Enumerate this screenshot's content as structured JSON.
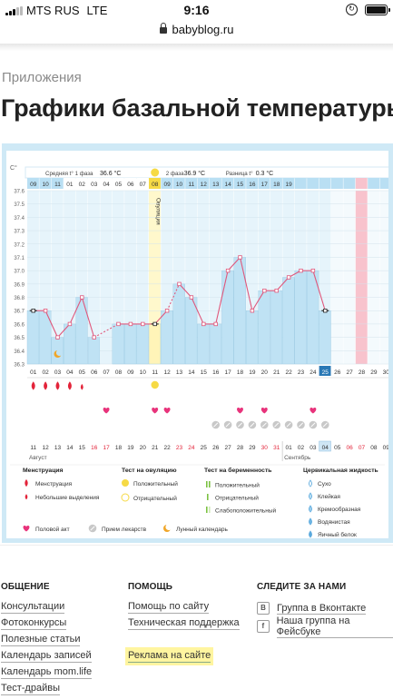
{
  "status_bar": {
    "carrier": "MTS RUS",
    "network": "LTE",
    "time": "9:16"
  },
  "browser": {
    "url": "babyblog.ru"
  },
  "breadcrumb": "Приложения",
  "page_title": "Графики базальной температуры",
  "chart": {
    "unit_label": "C°",
    "summary": {
      "phase1_label": "Средняя t° 1 фаза",
      "phase1_value": "36.6 °C",
      "phase2_label": "2 фаза",
      "phase2_value": "36.9 °C",
      "diff_label": "Разница t°",
      "diff_value": "0.3 °C"
    },
    "ovulation_label": "Овуляция",
    "top_days": [
      "09",
      "10",
      "11",
      "01",
      "02",
      "03",
      "04",
      "05",
      "06",
      "07",
      "08",
      "09",
      "10",
      "11",
      "12",
      "13",
      "14",
      "15",
      "16",
      "17",
      "18",
      "19"
    ],
    "bottom_days": [
      "01",
      "02",
      "03",
      "04",
      "05",
      "06",
      "07",
      "08",
      "09",
      "10",
      "11",
      "12",
      "13",
      "14",
      "15",
      "16",
      "17",
      "18",
      "19",
      "20",
      "21",
      "22",
      "23",
      "24",
      "25",
      "26",
      "27",
      "28",
      "29",
      "30"
    ],
    "dates": [
      "11",
      "12",
      "13",
      "14",
      "15",
      "16",
      "17",
      "18",
      "19",
      "20",
      "21",
      "22",
      "23",
      "24",
      "25",
      "26",
      "27",
      "28",
      "29",
      "30",
      "31",
      "01",
      "02",
      "03",
      "04",
      "05",
      "06",
      "07",
      "08",
      "09"
    ],
    "month_start": "Август",
    "month_next": "Сентябрь",
    "chart_data": {
      "type": "line",
      "xlabel": "",
      "ylabel": "C°",
      "ylim": [
        36.3,
        37.6
      ],
      "y_ticks": [
        "37.6",
        "37.5",
        "37.4",
        "37.3",
        "37.2",
        "37.1",
        "37.0",
        "36.9",
        "36.8",
        "36.7",
        "36.6",
        "36.5",
        "36.4",
        "36.3"
      ],
      "x": [
        "01",
        "02",
        "03",
        "04",
        "05",
        "06",
        "07",
        "08",
        "09",
        "10",
        "11",
        "12",
        "13",
        "14",
        "15",
        "16",
        "17",
        "18",
        "19",
        "20",
        "21",
        "22",
        "23",
        "24",
        "25",
        "26",
        "27",
        "28",
        "29",
        "30"
      ],
      "series": [
        {
          "values": [
            36.7,
            36.7,
            36.5,
            36.6,
            36.8,
            36.5,
            null,
            36.6,
            36.6,
            36.6,
            36.6,
            36.7,
            36.9,
            36.8,
            36.6,
            36.6,
            37.0,
            37.1,
            36.7,
            36.85,
            36.85,
            36.95,
            37.0,
            37.0,
            36.7,
            null,
            null,
            null,
            null,
            null
          ]
        }
      ],
      "ovulation_day": "11",
      "today": "25",
      "highlight_day": "28",
      "menstruation_days": [
        "01",
        "02",
        "03",
        "04"
      ],
      "light_discharge_days": [
        "05"
      ],
      "ovulation_test_positive_days": [
        "11"
      ],
      "intercourse_days": [
        "07",
        "11",
        "12",
        "18",
        "20",
        "24"
      ],
      "medication_days": [
        "16",
        "17",
        "18",
        "19",
        "20",
        "21",
        "22",
        "23",
        "24",
        "25"
      ],
      "moon_day": "03"
    },
    "legend": {
      "menstruation": {
        "title": "Менструация",
        "items": [
          "Менструация",
          "Небольшие выделения"
        ]
      },
      "ovulation": {
        "title": "Тест на овуляцию",
        "items": [
          "Положительный",
          "Отрицательный"
        ]
      },
      "pregnancy": {
        "title": "Тест на беременность",
        "items": [
          "Положительный",
          "Отрицательный",
          "Слабоположительный"
        ]
      },
      "cervical": {
        "title": "Цервикальная жидкость",
        "items": [
          "Сухо",
          "Клейкая",
          "Кремообразная",
          "Водянистая",
          "Яичный белок"
        ]
      },
      "bottom": [
        "Половой акт",
        "Прием лекарств",
        "Лунный календарь"
      ]
    },
    "colors": {
      "light_blue": "#cde8f6",
      "blue_header": "#b9dff3",
      "ovulation_yellow": "#f6da45",
      "pink": "#f8c3cd",
      "red": "#e3243a",
      "heart": "#e8337b",
      "line": "#e0577b",
      "dark": "#333333"
    }
  },
  "footer": {
    "general": {
      "title": "ОБЩЕНИЕ",
      "links": [
        "Консультации",
        "Фотоконкурсы",
        "Полезные статьи",
        "Календарь записей",
        "Календарь mom.life",
        "Тест-драйвы"
      ]
    },
    "help": {
      "title": "ПОМОЩЬ",
      "links": [
        "Помощь по сайту",
        "Техническая поддержка"
      ],
      "ad": "Реклама на сайте"
    },
    "follow": {
      "title": "СЛЕДИТЕ ЗА НАМИ",
      "vk_icon": "В",
      "vk": "Группа в Вконтакте",
      "fb_icon": "f",
      "fb": "Наша группа на Фейсбуке"
    }
  }
}
